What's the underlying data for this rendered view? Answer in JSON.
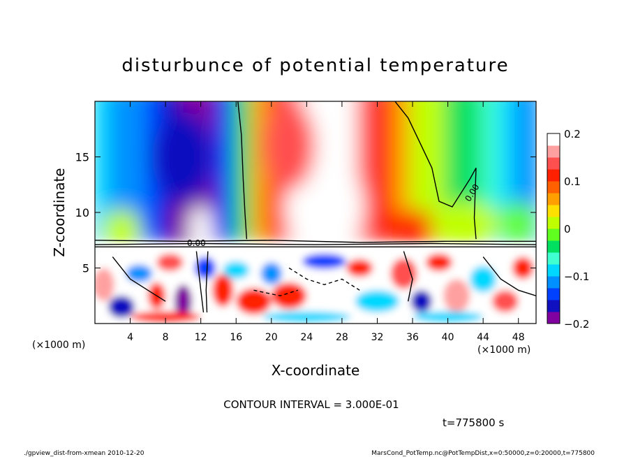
{
  "chart_data": {
    "type": "heatmap",
    "title": "disturbunce of potential temperature",
    "xlabel": "X-coordinate",
    "ylabel": "Z-coordinate",
    "x_unit_left": "(×1000 m)",
    "x_unit_right": "(×1000 m)",
    "xlim": [
      0,
      50
    ],
    "ylim": [
      0,
      20
    ],
    "x_ticks": [
      4,
      8,
      12,
      16,
      20,
      24,
      28,
      32,
      36,
      40,
      44,
      48
    ],
    "y_ticks": [
      5,
      10,
      15
    ],
    "colorbar": {
      "range": [
        -0.2,
        0.2
      ],
      "ticks": [
        {
          "value": 0.2,
          "label": "0.2"
        },
        {
          "value": 0.1,
          "label": "0.1"
        },
        {
          "value": 0,
          "label": "0"
        },
        {
          "value": -0.1,
          "label": "−0.1"
        },
        {
          "value": -0.2,
          "label": "−0.2"
        }
      ],
      "colors": [
        "#8000a0",
        "#1010c0",
        "#0040ff",
        "#0090ff",
        "#00d8ff",
        "#40ffd0",
        "#00e060",
        "#60ff20",
        "#c0ff00",
        "#ffe000",
        "#ffa000",
        "#ff6000",
        "#ff2000",
        "#ff5050",
        "#ffa0a0",
        "#ffffff"
      ]
    },
    "contour_label": "0.00",
    "contour_label_2": "0.00",
    "annotation_interval": "CONTOUR INTERVAL = 3.000E-01",
    "annotation_time": "t=775800 s",
    "footer_left": "./gpview_dist-from-xmean   2010-12-20",
    "footer_right": "MarsCond_PotTemp.nc@PotTempDist,x=0:50000,z=0:20000,t=775800"
  }
}
